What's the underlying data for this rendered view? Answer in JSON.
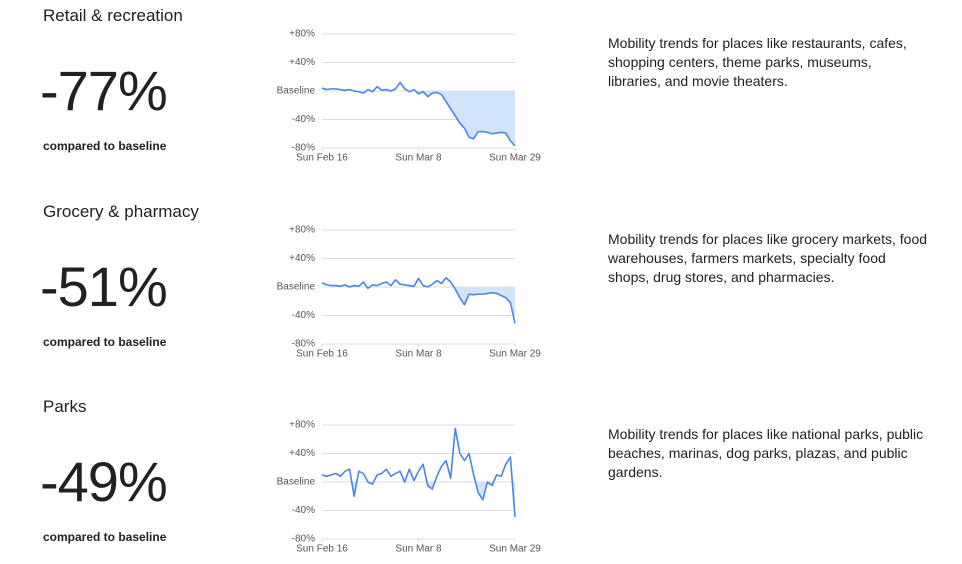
{
  "chart_data": [
    {
      "type": "line",
      "title": "Retail & recreation",
      "headline": "-77%",
      "subtitle": "compared to baseline",
      "description": "Mobility trends for places like restaurants, cafes, shopping centers, theme parks, museums, libraries, and movie theaters.",
      "categories": [
        "Sun Feb 16",
        null,
        null,
        null,
        null,
        null,
        null,
        null,
        null,
        null,
        null,
        null,
        null,
        null,
        null,
        null,
        null,
        null,
        null,
        null,
        null,
        "Sun Mar 8",
        null,
        null,
        null,
        null,
        null,
        null,
        null,
        null,
        null,
        null,
        null,
        null,
        null,
        null,
        null,
        null,
        null,
        null,
        null,
        null,
        "Sun Mar 29"
      ],
      "values": [
        4,
        2,
        3,
        3,
        2,
        1,
        2,
        0,
        -1,
        -3,
        2,
        -1,
        6,
        1,
        2,
        0,
        3,
        12,
        3,
        -1,
        2,
        -4,
        -1,
        -8,
        -3,
        -2,
        -5,
        -15,
        -25,
        -35,
        -45,
        -52,
        -65,
        -67,
        -57,
        -57,
        -58,
        -60,
        -59,
        -58,
        -59,
        -70,
        -77
      ],
      "color": "#4a86e8",
      "fill": "#d2e3fc",
      "ylim": [
        -80,
        80
      ],
      "yticks": [
        {
          "value": 80,
          "label": "+80%"
        },
        {
          "value": 40,
          "label": "+40%"
        },
        {
          "value": 0,
          "label": "Baseline"
        },
        {
          "value": -40,
          "label": "-40%"
        },
        {
          "value": -80,
          "label": "-80%"
        }
      ],
      "grid": true
    },
    {
      "type": "line",
      "title": "Grocery & pharmacy",
      "headline": "-51%",
      "subtitle": "compared to baseline",
      "description": "Mobility trends for places like grocery markets, food warehouses, farmers markets, specialty food shops, drug stores, and pharmacies.",
      "categories": [
        "Sun Feb 16",
        null,
        null,
        null,
        null,
        null,
        null,
        null,
        null,
        null,
        null,
        null,
        null,
        null,
        null,
        null,
        null,
        null,
        null,
        null,
        null,
        "Sun Mar 8",
        null,
        null,
        null,
        null,
        null,
        null,
        null,
        null,
        null,
        null,
        null,
        null,
        null,
        null,
        null,
        null,
        null,
        null,
        null,
        null,
        "Sun Mar 29"
      ],
      "values": [
        6,
        3,
        2,
        2,
        1,
        3,
        0,
        2,
        1,
        7,
        -2,
        3,
        2,
        5,
        7,
        2,
        10,
        4,
        3,
        2,
        1,
        12,
        2,
        0,
        4,
        9,
        5,
        13,
        7,
        -3,
        -15,
        -25,
        -10,
        -11,
        -10,
        -10,
        -9,
        -8,
        -9,
        -12,
        -15,
        -22,
        -51
      ],
      "color": "#4a86e8",
      "fill": "#d2e3fc",
      "ylim": [
        -80,
        80
      ],
      "yticks": [
        {
          "value": 80,
          "label": "+80%"
        },
        {
          "value": 40,
          "label": "+40%"
        },
        {
          "value": 0,
          "label": "Baseline"
        },
        {
          "value": -40,
          "label": "-40%"
        },
        {
          "value": -80,
          "label": "-80%"
        }
      ],
      "grid": true
    },
    {
      "type": "line",
      "title": "Parks",
      "headline": "-49%",
      "subtitle": "compared to baseline",
      "description": "Mobility trends for places like national parks, public beaches, marinas, dog parks, plazas, and public gardens.",
      "categories": [
        "Sun Feb 16",
        null,
        null,
        null,
        null,
        null,
        null,
        null,
        null,
        null,
        null,
        null,
        null,
        null,
        null,
        null,
        null,
        null,
        null,
        null,
        null,
        "Sun Mar 8",
        null,
        null,
        null,
        null,
        null,
        null,
        null,
        null,
        null,
        null,
        null,
        null,
        null,
        null,
        null,
        null,
        null,
        null,
        null,
        null,
        "Sun Mar 29"
      ],
      "values": [
        10,
        8,
        10,
        12,
        8,
        15,
        18,
        -20,
        15,
        12,
        0,
        -3,
        10,
        12,
        18,
        8,
        12,
        15,
        0,
        18,
        2,
        15,
        25,
        -5,
        -10,
        8,
        22,
        30,
        5,
        75,
        40,
        30,
        40,
        10,
        -15,
        -25,
        0,
        -5,
        10,
        8,
        25,
        35,
        -49
      ],
      "color": "#4a86e8",
      "fill": "#d2e3fc",
      "ylim": [
        -80,
        80
      ],
      "yticks": [
        {
          "value": 80,
          "label": "+80%"
        },
        {
          "value": 40,
          "label": "+40%"
        },
        {
          "value": 0,
          "label": "Baseline"
        },
        {
          "value": -40,
          "label": "-40%"
        },
        {
          "value": -80,
          "label": "-80%"
        }
      ],
      "grid": true
    }
  ]
}
